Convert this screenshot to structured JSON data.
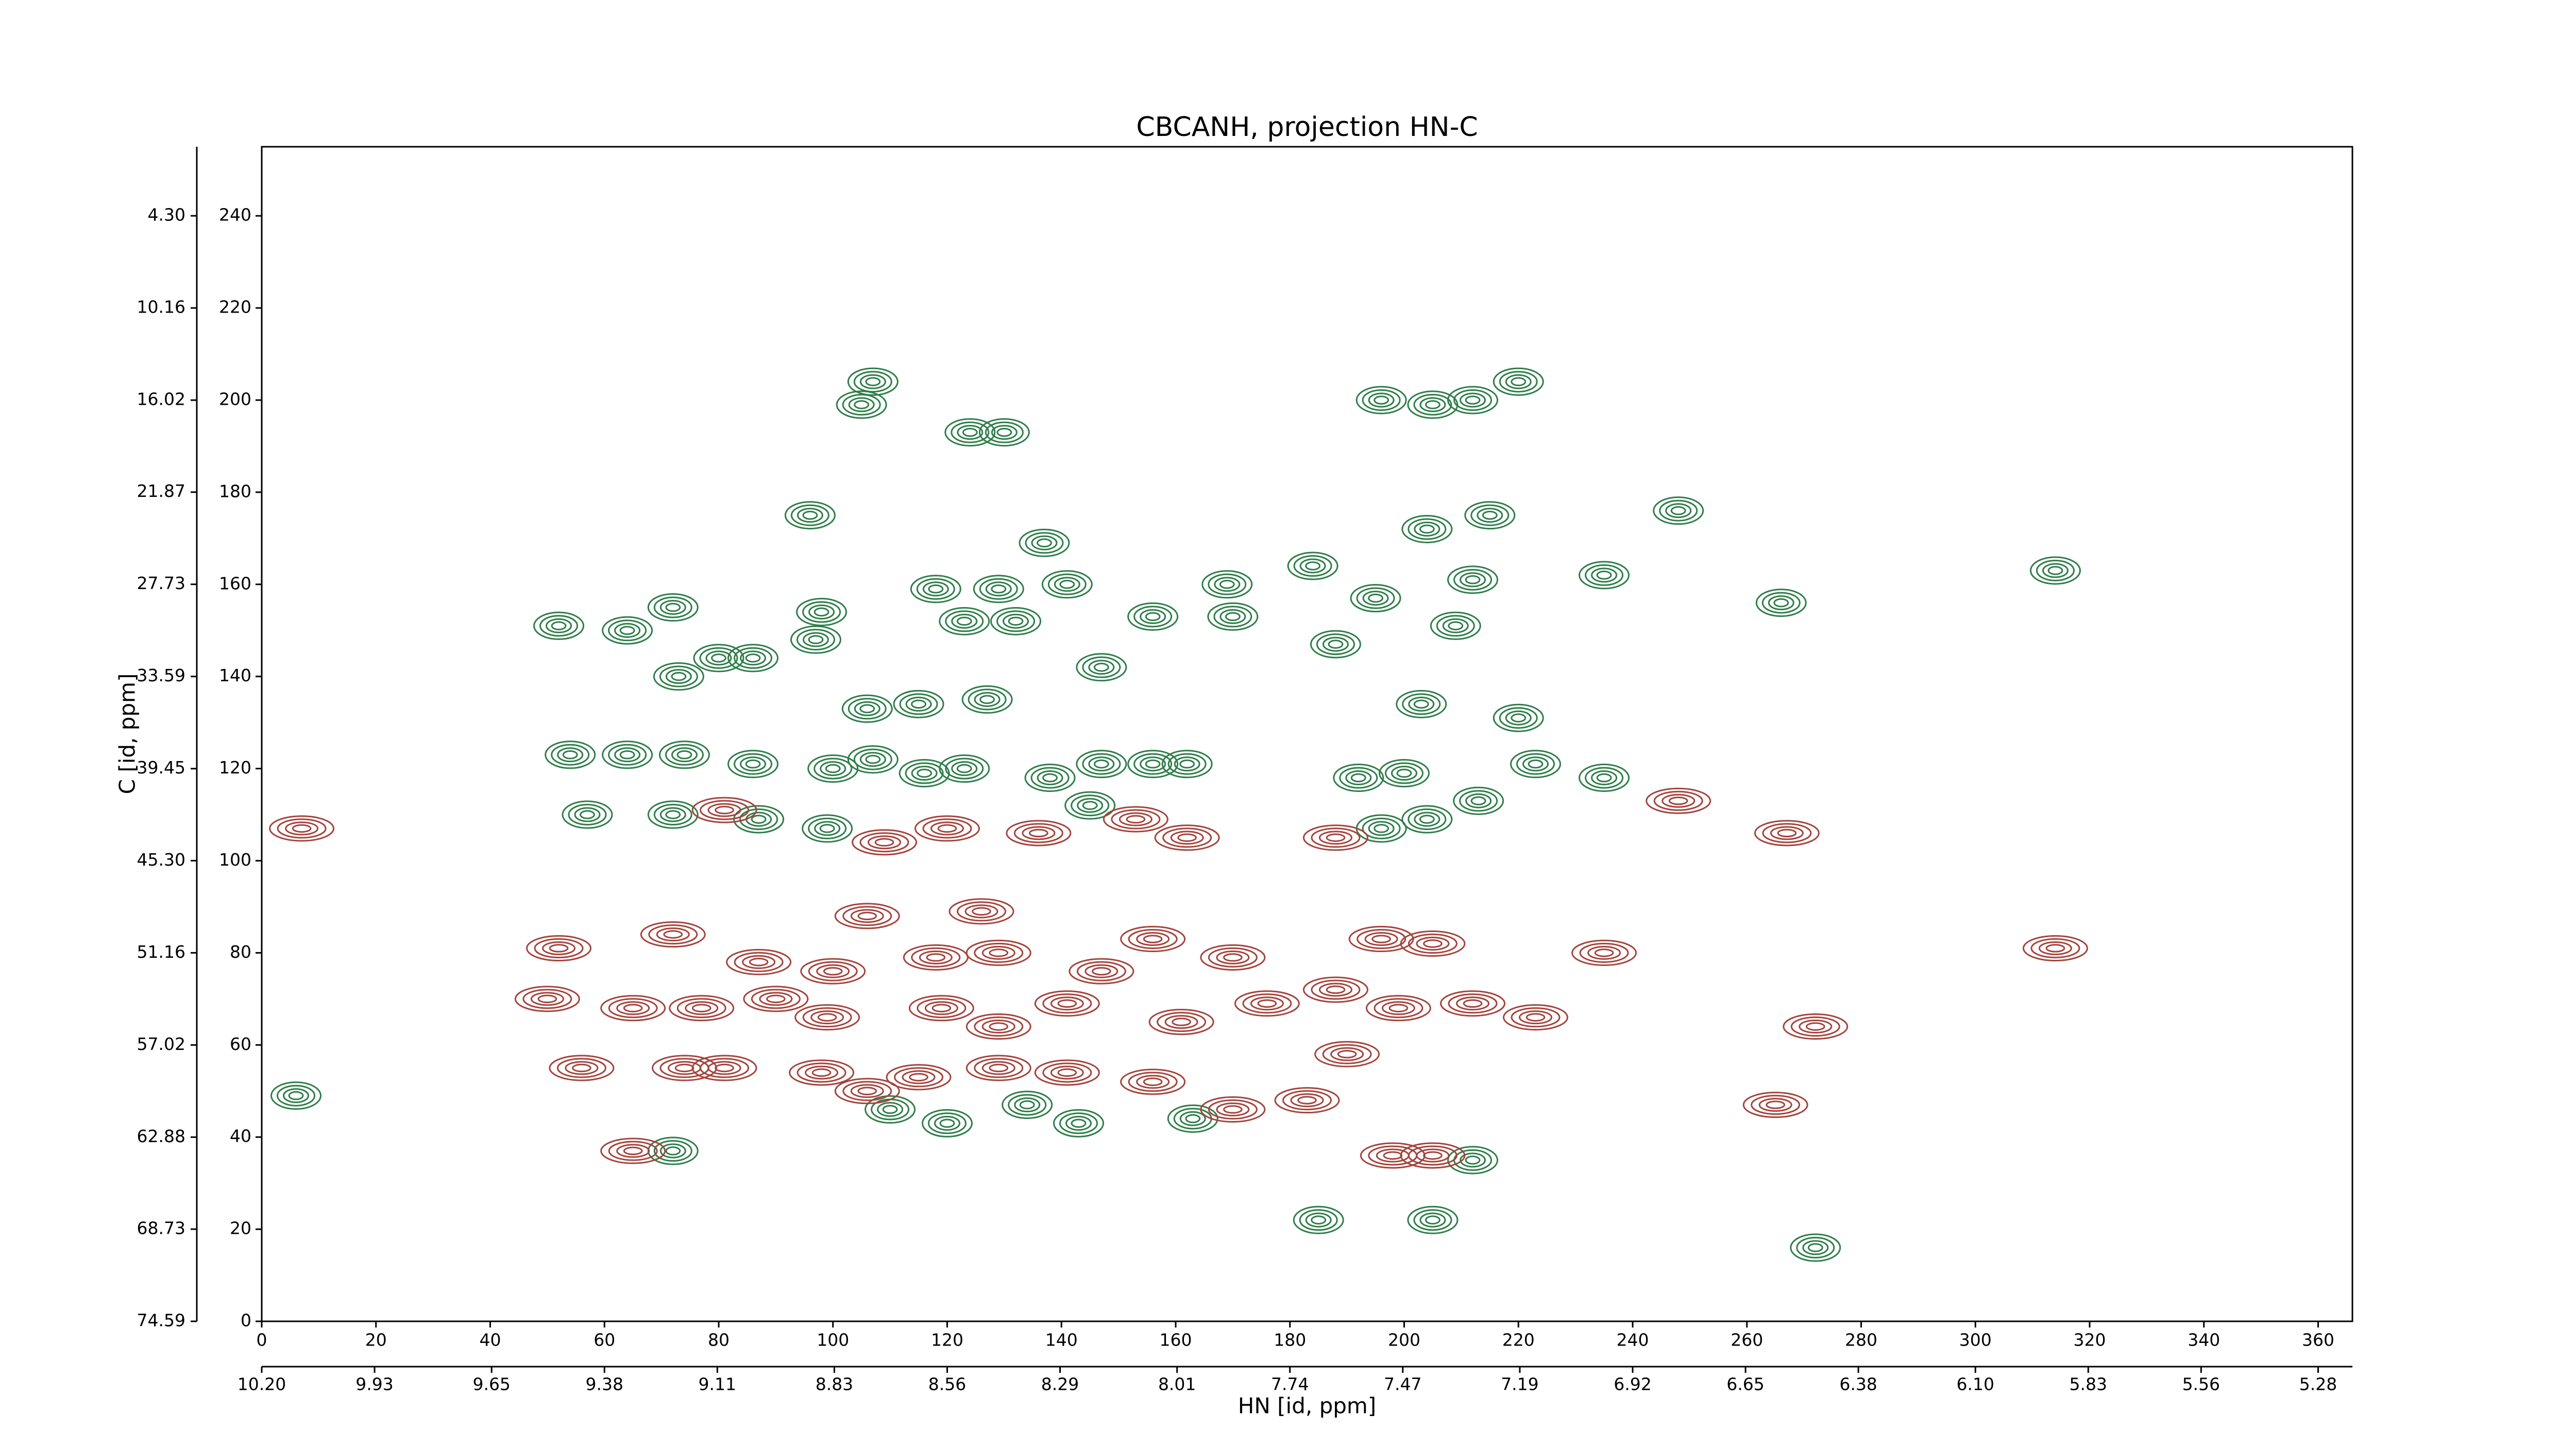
{
  "chart_data": {
    "type": "contour",
    "title": "CBCANH, projection HN-C",
    "xlabel": "HN [id, ppm]",
    "ylabel": "C [id, ppm]",
    "xlim": [
      0,
      366
    ],
    "ylim": [
      0,
      255
    ],
    "xticks": [
      0,
      20,
      40,
      60,
      80,
      100,
      120,
      140,
      160,
      180,
      200,
      220,
      240,
      260,
      280,
      300,
      320,
      340,
      360
    ],
    "yticks": [
      0,
      20,
      40,
      60,
      80,
      100,
      120,
      140,
      160,
      180,
      200,
      220,
      240
    ],
    "x2lim": [
      10.2,
      5.198
    ],
    "x2ticks": [
      {
        "value": 10.2,
        "label": "10.20"
      },
      9.93,
      9.65,
      9.38,
      9.11,
      8.83,
      8.56,
      8.29,
      8.01,
      7.74,
      7.47,
      7.19,
      6.92,
      6.65,
      6.38,
      {
        "value": 6.1,
        "label": "6.10"
      },
      5.83,
      5.56,
      5.28
    ],
    "y2lim": [
      74.59,
      -0.09
    ],
    "y2ticks": [
      74.59,
      68.73,
      62.88,
      57.02,
      51.16,
      {
        "value": 45.3,
        "label": "45.30"
      },
      39.45,
      33.59,
      27.73,
      21.87,
      16.02,
      10.16,
      {
        "value": 4.3,
        "label": "4.30"
      }
    ],
    "series": [
      {
        "color": "#2e7d4a",
        "x": [
          107,
          105,
          124,
          130,
          196,
          205,
          212,
          220,
          96,
          215,
          248,
          204,
          137,
          118,
          129,
          141,
          169,
          184,
          212,
          235,
          266,
          314,
          72,
          52,
          64,
          98,
          123,
          132,
          170,
          156,
          195,
          209,
          73,
          80,
          86,
          97,
          147,
          188,
          106,
          127,
          115,
          203,
          54,
          64,
          74,
          86,
          100,
          107,
          116,
          123,
          138,
          147,
          156,
          162,
          220,
          223,
          235,
          200,
          192,
          57,
          72,
          87,
          99,
          145,
          213,
          196,
          204,
          6,
          110,
          120,
          134,
          143,
          163,
          72,
          212,
          185,
          205,
          272
        ],
        "y": [
          204,
          199,
          193,
          193,
          200,
          199,
          200,
          204,
          175,
          175,
          176,
          172,
          169,
          159,
          159,
          160,
          160,
          164,
          161,
          162,
          156,
          163,
          155,
          151,
          150,
          154,
          152,
          152,
          153,
          153,
          157,
          151,
          140,
          144,
          144,
          148,
          142,
          147,
          133,
          135,
          134,
          134,
          123,
          123,
          123,
          121,
          120,
          122,
          119,
          120,
          118,
          121,
          121,
          121,
          131,
          121,
          118,
          119,
          118,
          110,
          110,
          109,
          107,
          112,
          113,
          107,
          109,
          49,
          46,
          43,
          47,
          43,
          44,
          37,
          35,
          22,
          22,
          16
        ]
      },
      {
        "color": "#a4433c",
        "x": [
          7,
          81,
          109,
          120,
          136,
          153,
          162,
          188,
          267,
          248,
          126,
          106,
          52,
          72,
          87,
          100,
          118,
          129,
          147,
          156,
          170,
          196,
          205,
          235,
          314,
          50,
          65,
          77,
          90,
          99,
          119,
          129,
          141,
          161,
          176,
          188,
          199,
          212,
          223,
          272,
          56,
          74,
          81,
          98,
          115,
          129,
          141,
          156,
          190,
          183,
          106,
          170,
          265,
          65,
          198,
          205
        ],
        "y": [
          107,
          111,
          104,
          107,
          106,
          109,
          105,
          105,
          106,
          113,
          89,
          88,
          81,
          84,
          78,
          76,
          79,
          80,
          76,
          83,
          79,
          83,
          82,
          80,
          81,
          70,
          68,
          68,
          70,
          66,
          68,
          64,
          69,
          65,
          69,
          72,
          68,
          69,
          66,
          64,
          55,
          55,
          55,
          54,
          53,
          55,
          54,
          52,
          58,
          48,
          50,
          46,
          47,
          37,
          36,
          36
        ]
      }
    ]
  }
}
